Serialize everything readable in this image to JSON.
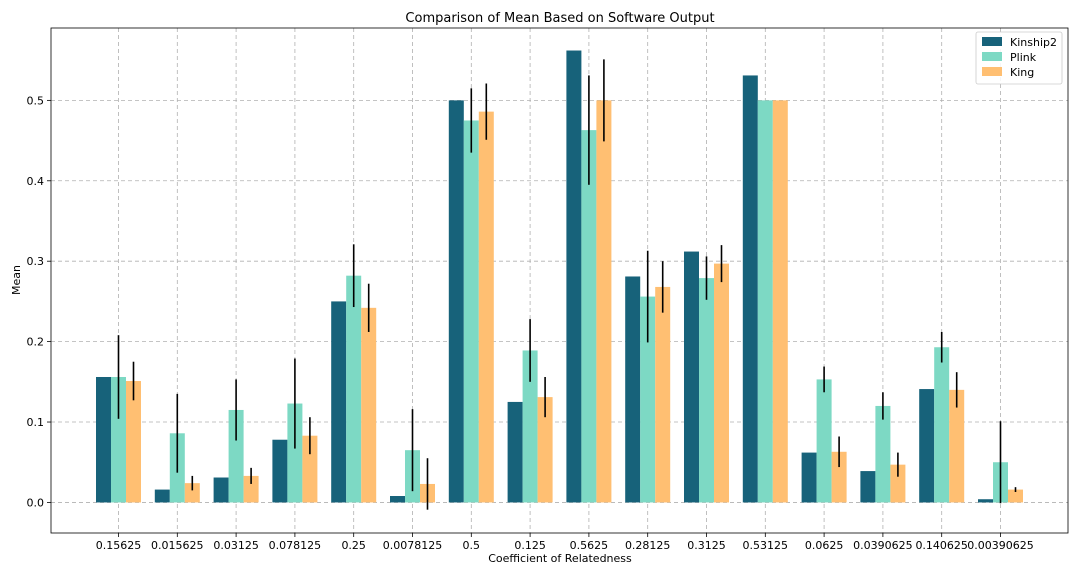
{
  "chart_data": {
    "type": "bar",
    "title": "Comparison of Mean Based on Software Output",
    "xlabel": "Coefficient of Relatedness",
    "ylabel": "Mean",
    "ylim": [
      -0.038,
      0.59
    ],
    "yticks": [
      0.0,
      0.1,
      0.2,
      0.3,
      0.4,
      0.5
    ],
    "ytick_labels": [
      "0.0",
      "0.1",
      "0.2",
      "0.3",
      "0.4",
      "0.5"
    ],
    "grid": true,
    "legend_position": "top-right",
    "categories": [
      "0.15625",
      "0.015625",
      "0.03125",
      "0.078125",
      "0.25",
      "0.0078125",
      "0.5",
      "0.125",
      "0.5625",
      "0.28125",
      "0.3125",
      "0.53125",
      "0.0625",
      "0.0390625",
      "0.140625",
      "0.00390625"
    ],
    "series": [
      {
        "name": "Kinship2",
        "color": "#17627a",
        "values": [
          0.156,
          0.016,
          0.031,
          0.078,
          0.25,
          0.008,
          0.5,
          0.125,
          0.562,
          0.281,
          0.312,
          0.531,
          0.062,
          0.039,
          0.141,
          0.004
        ],
        "errors": [
          null,
          null,
          null,
          null,
          null,
          null,
          null,
          null,
          null,
          null,
          null,
          null,
          null,
          null,
          null,
          null
        ]
      },
      {
        "name": "Plink",
        "color": "#7dd9c4",
        "values": [
          0.156,
          0.086,
          0.115,
          0.123,
          0.282,
          0.065,
          0.475,
          0.189,
          0.463,
          0.256,
          0.279,
          0.5,
          0.153,
          0.12,
          0.193,
          0.05
        ],
        "errors": [
          0.052,
          0.049,
          0.038,
          0.056,
          0.039,
          0.051,
          0.04,
          0.039,
          0.068,
          0.057,
          0.027,
          null,
          0.016,
          0.017,
          0.019,
          0.051
        ]
      },
      {
        "name": "King",
        "color": "#ffbf72",
        "values": [
          0.151,
          0.024,
          0.033,
          0.083,
          0.242,
          0.023,
          0.486,
          0.131,
          0.5,
          0.268,
          0.297,
          0.5,
          0.063,
          0.047,
          0.14,
          0.016
        ],
        "errors": [
          0.024,
          0.009,
          0.01,
          0.023,
          0.03,
          0.032,
          0.035,
          0.025,
          0.051,
          0.032,
          0.023,
          null,
          0.019,
          0.015,
          0.022,
          0.003
        ]
      }
    ]
  }
}
